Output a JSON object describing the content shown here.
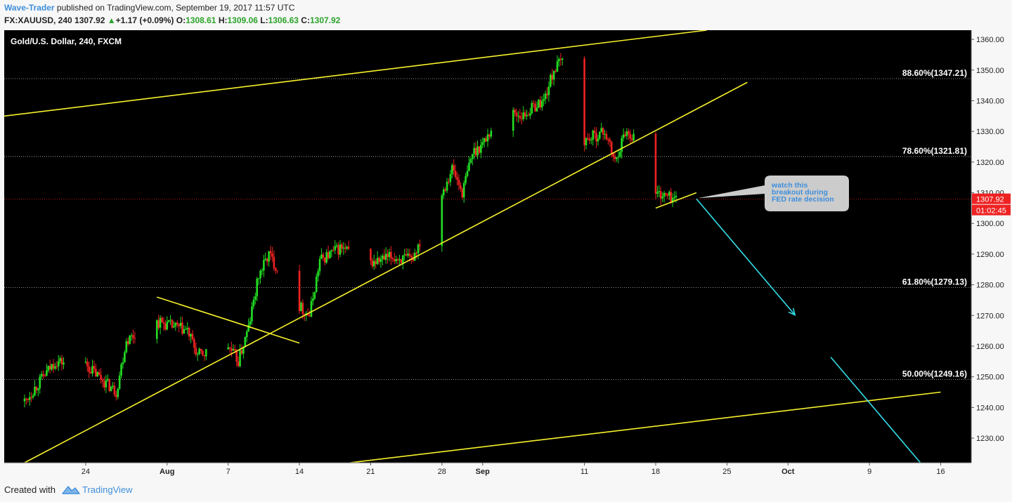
{
  "header": {
    "author": "Wave-Trader",
    "published_text": " published on TradingView.com, September 19, 2017 11:57 UTC",
    "symbol": "FX:XAUUSD, 240",
    "last": "1307.92",
    "change": "+1.17 (+0.09%)",
    "open_label": "O:",
    "open": "1308.61",
    "high_label": "H:",
    "high": "1309.06",
    "low_label": "L:",
    "low": "1306.63",
    "close_label": "C:",
    "close": "1307.92"
  },
  "colors": {
    "background": "#000000",
    "up": "#22dd22",
    "down": "#ee2222",
    "trendline": "#f7f12b",
    "target_arrow": "#33dde8",
    "price_tag": "#ee2222",
    "callout_bg": "#cccccc",
    "callout_text": "#3e8edb"
  },
  "chart_data": {
    "type": "candlestick",
    "title": "Gold/U.S. Dollar, 240, FXCM",
    "x_ticks": [
      "24",
      "Aug",
      "7",
      "14",
      "21",
      "28",
      "Sep",
      "11",
      "18",
      "25",
      "Oct",
      "9",
      "16"
    ],
    "y_ticks": [
      1230,
      1240,
      1250,
      1260,
      1270,
      1280,
      1290,
      1300,
      1310,
      1320,
      1330,
      1340,
      1350,
      1360
    ],
    "y_range": [
      1222,
      1363
    ],
    "y_tick_labels": [
      "1230.00",
      "1240.00",
      "1250.00",
      "1260.00",
      "1270.00",
      "1280.00",
      "1290.00",
      "1300.00",
      "1310.00",
      "1320.00",
      "1330.00",
      "1340.00",
      "1350.00",
      "1360.00"
    ],
    "fib_levels": [
      {
        "label": "88.60%(1347.21)",
        "price": 1347.21
      },
      {
        "label": "78.60%(1321.81)",
        "price": 1321.81
      },
      {
        "label": "61.80%(1279.13)",
        "price": 1279.13
      },
      {
        "label": "50.00%(1249.16)",
        "price": 1249.16
      }
    ],
    "current_price": "1307.92",
    "countdown": "01:02:45",
    "annotation": {
      "lines": [
        "watch this",
        "breakout during",
        "FED rate decision"
      ]
    },
    "price_path": [
      [
        "2017-07-18",
        1242
      ],
      [
        "2017-07-21",
        1255
      ],
      [
        "2017-07-24",
        1254
      ],
      [
        "2017-07-27",
        1245
      ],
      [
        "2017-07-28",
        1262
      ],
      [
        "2017-07-31",
        1268
      ],
      [
        "2017-08-03",
        1265
      ],
      [
        "2017-08-04",
        1257
      ],
      [
        "2017-08-07",
        1260
      ],
      [
        "2017-08-08",
        1255
      ],
      [
        "2017-08-09",
        1266
      ],
      [
        "2017-08-10",
        1283
      ],
      [
        "2017-08-11",
        1290
      ],
      [
        "2017-08-14",
        1273
      ],
      [
        "2017-08-15",
        1270
      ],
      [
        "2017-08-16",
        1288
      ],
      [
        "2017-08-18",
        1292
      ],
      [
        "2017-08-21",
        1287
      ],
      [
        "2017-08-23",
        1289
      ],
      [
        "2017-08-25",
        1288
      ],
      [
        "2017-08-28",
        1310
      ],
      [
        "2017-08-29",
        1318
      ],
      [
        "2017-08-30",
        1310
      ],
      [
        "2017-08-31",
        1323
      ],
      [
        "2017-09-01",
        1326
      ],
      [
        "2017-09-03",
        1337
      ],
      [
        "2017-09-05",
        1335
      ],
      [
        "2017-09-06",
        1338
      ],
      [
        "2017-09-07",
        1340
      ],
      [
        "2017-09-08",
        1350
      ],
      [
        "2017-09-09",
        1354
      ],
      [
        "2017-09-10",
        1330
      ],
      [
        "2017-09-11",
        1327
      ],
      [
        "2017-09-13",
        1330
      ],
      [
        "2017-09-14",
        1320
      ],
      [
        "2017-09-15",
        1330
      ],
      [
        "2017-09-16",
        1328
      ],
      [
        "2017-09-17",
        1312
      ],
      [
        "2017-09-18",
        1310
      ],
      [
        "2017-09-19",
        1309
      ],
      [
        "2017-09-20",
        1308
      ]
    ],
    "trendlines": [
      {
        "from": [
          "2017-07-16",
          1335
        ],
        "to": [
          "2017-09-23",
          1363
        ]
      },
      {
        "from": [
          "2017-07-18",
          1222
        ],
        "to": [
          "2017-09-27",
          1346
        ]
      },
      {
        "from": [
          "2017-07-31",
          1276
        ],
        "to": [
          "2017-08-14",
          1261
        ]
      },
      {
        "from": [
          "2017-08-19",
          1222
        ],
        "to": [
          "2017-10-16",
          1245
        ]
      },
      {
        "from": [
          "2017-09-18",
          1305
        ],
        "to": [
          "2017-09-22",
          1310
        ]
      }
    ],
    "projection": {
      "from": [
        "2017-09-22",
        1308
      ],
      "to": [
        "2017-10-14",
        1222
      ]
    }
  },
  "footer": {
    "created_with": "Created with",
    "brand": "TradingView"
  }
}
